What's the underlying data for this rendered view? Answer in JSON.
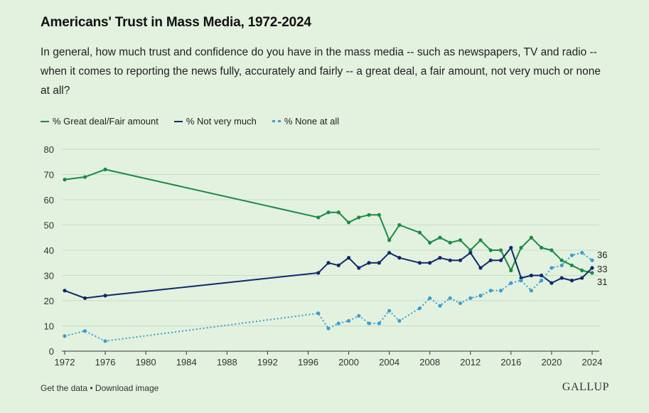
{
  "header": {
    "title": "Americans' Trust in Mass Media, 1972-2024",
    "subtitle": "In general, how much trust and confidence do you have in the mass media -- such as newspapers, TV and radio -- when it comes to reporting the news fully, accurately and fairly -- a great deal, a fair amount, not very much or none at all?"
  },
  "footer": {
    "get_data": "Get the data",
    "separator": " • ",
    "download": "Download image",
    "logo": "GALLUP"
  },
  "chart_data": {
    "type": "line",
    "title": "Americans' Trust in Mass Media, 1972-2024",
    "xlabel": "",
    "ylabel": "",
    "xlim": [
      1972,
      2024
    ],
    "ylim": [
      0,
      80
    ],
    "x_ticks": [
      1972,
      1976,
      1980,
      1984,
      1988,
      1992,
      1996,
      2000,
      2004,
      2008,
      2012,
      2016,
      2020,
      2024
    ],
    "y_ticks": [
      0,
      10,
      20,
      30,
      40,
      50,
      60,
      70,
      80
    ],
    "grid": true,
    "legend_position": "top-left",
    "x": [
      1972,
      1974,
      1976,
      1997,
      1998,
      1999,
      2000,
      2001,
      2002,
      2003,
      2004,
      2005,
      2007,
      2008,
      2009,
      2010,
      2011,
      2012,
      2013,
      2014,
      2015,
      2016,
      2017,
      2018,
      2019,
      2020,
      2021,
      2022,
      2023,
      2024
    ],
    "series": [
      {
        "name": "% Great deal/Fair amount",
        "color": "#1a8a45",
        "style": "solid",
        "values": [
          68,
          69,
          72,
          53,
          55,
          55,
          51,
          53,
          54,
          54,
          44,
          50,
          47,
          43,
          45,
          43,
          44,
          40,
          44,
          40,
          40,
          32,
          41,
          45,
          41,
          40,
          36,
          34,
          32,
          31
        ],
        "end_label": "31"
      },
      {
        "name": "% Not very much",
        "color": "#0f2a6b",
        "style": "solid",
        "values": [
          24,
          21,
          22,
          31,
          35,
          34,
          37,
          33,
          35,
          35,
          39,
          37,
          35,
          35,
          37,
          36,
          36,
          39,
          33,
          36,
          36,
          41,
          29,
          30,
          30,
          27,
          29,
          28,
          29,
          33
        ],
        "end_label": "33"
      },
      {
        "name": "% None at all",
        "color": "#3a9fd0",
        "style": "dotted",
        "values": [
          6,
          8,
          4,
          15,
          9,
          11,
          12,
          14,
          11,
          11,
          16,
          12,
          17,
          21,
          18,
          21,
          19,
          21,
          22,
          24,
          24,
          27,
          28,
          24,
          28,
          33,
          34,
          38,
          39,
          36
        ],
        "end_label": "36"
      }
    ]
  }
}
